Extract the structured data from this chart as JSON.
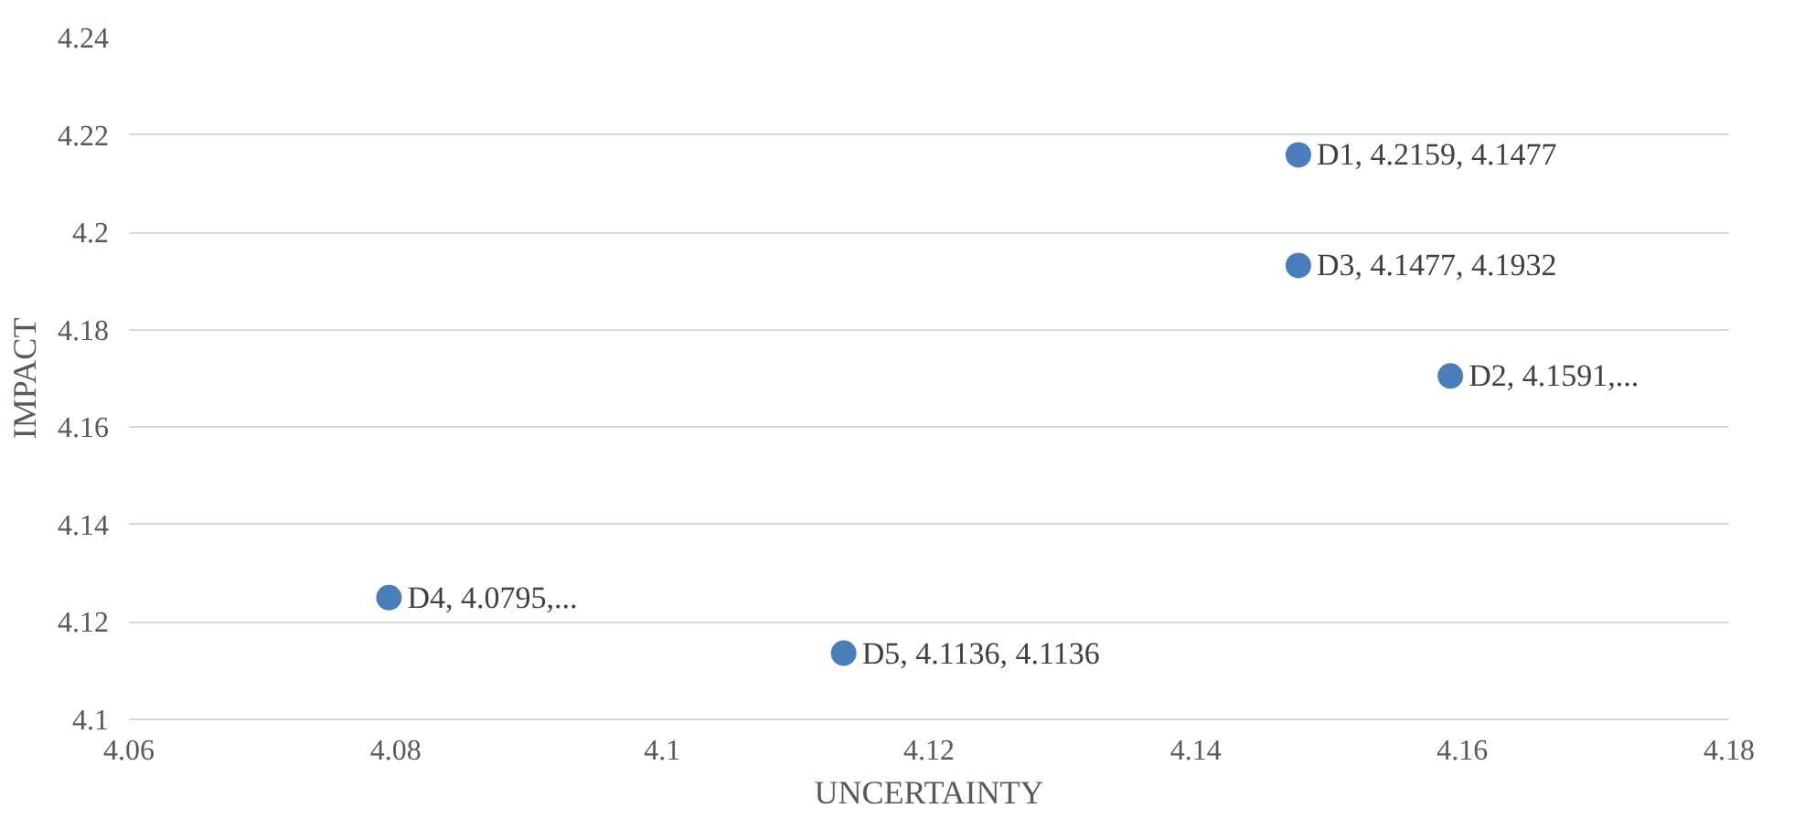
{
  "chart_data": {
    "type": "scatter",
    "xlabel": "UNCERTAINTY",
    "ylabel": "IMPACT",
    "x": [
      4.1477,
      4.1591,
      4.1477,
      4.0795,
      4.1136
    ],
    "values": [
      4.2159,
      4.1705,
      4.1932,
      4.125,
      4.1136
    ],
    "value_labels": [
      "D1, 4.2159, 4.1477",
      "D2, 4.1591,...",
      "D3, 4.1477, 4.1932",
      "D4, 4.0795,...",
      "D5, 4.1136, 4.1136"
    ],
    "color": "#4a7ebb",
    "marker": "circle",
    "xlim": [
      4.06,
      4.18
    ],
    "xticks": [
      4.06,
      4.08,
      4.1,
      4.12,
      4.14,
      4.16,
      4.18
    ],
    "ylim": [
      4.1,
      4.24
    ],
    "yticks": [
      4.1,
      4.12,
      4.14,
      4.16,
      4.18,
      4.2,
      4.22,
      4.24
    ],
    "grid": "y"
  }
}
